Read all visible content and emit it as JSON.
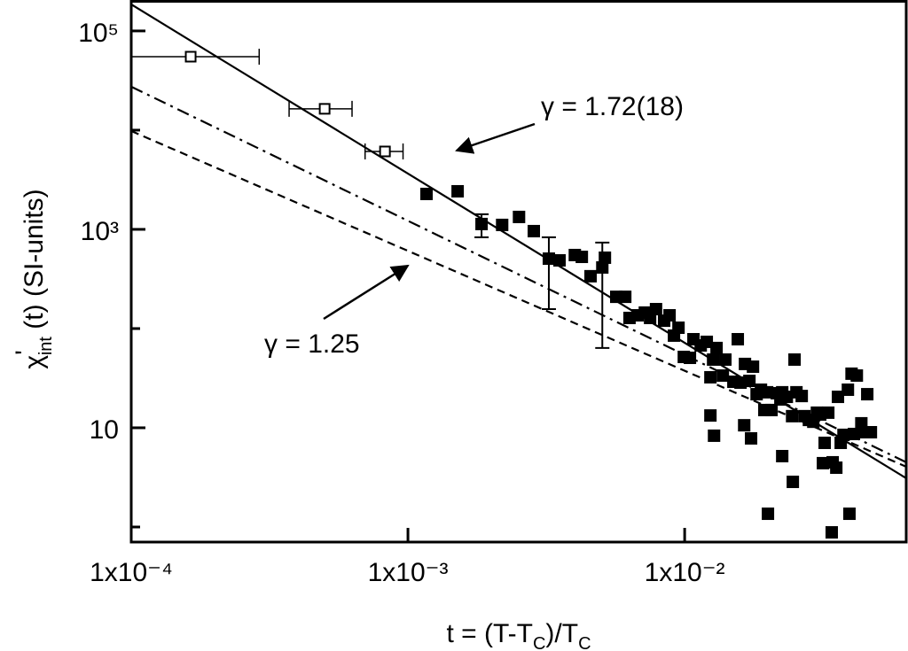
{
  "chart_data": {
    "type": "scatter",
    "log_x": true,
    "log_y": true,
    "x_label": [
      "t = (T-T",
      "C",
      ")/T",
      "C"
    ],
    "y_label": [
      "χ",
      "'",
      "int",
      " (t) (SI-units)"
    ],
    "xlim": [
      0.0001,
      0.0632
    ],
    "ylim": [
      0.705,
      205000
    ],
    "xticks": [
      {
        "value": 0.0001,
        "label": "1x10⁻⁴"
      },
      {
        "value": 0.001,
        "label": "1x10⁻³"
      },
      {
        "value": 0.01,
        "label": "1x10⁻²"
      }
    ],
    "yticks": [
      10,
      {
        "value": 1000,
        "label": "10³"
      },
      {
        "value": 100000,
        "label": "10⁵"
      }
    ],
    "yminor": [
      1,
      100,
      10000
    ],
    "open_points": {
      "color": "#000000",
      "x": [
        0.000164,
        0.0005,
        0.000826
      ],
      "values": [
        55000,
        16400,
        6100
      ],
      "x_low": [
        0.0001,
        0.000372,
        0.0007
      ],
      "x_high": [
        0.00029,
        0.000628,
        0.00096
      ]
    },
    "filled_points": {
      "color": "#000000",
      "x": [
        0.001167,
        0.001512,
        0.001845,
        0.00219,
        0.00252,
        0.00285,
        0.00323,
        0.00353,
        0.00401,
        0.00425,
        0.00457,
        0.00504,
        0.00515,
        0.00566,
        0.0061,
        0.00632,
        0.00676,
        0.00718,
        0.0075,
        0.00788,
        0.00843,
        0.00882,
        0.00915,
        0.0095,
        0.00993,
        0.01045,
        0.01076,
        0.01143,
        0.01202,
        0.01239,
        0.01267,
        0.01304,
        0.01374,
        0.01403,
        0.015,
        0.01556,
        0.01592,
        0.01652,
        0.01714,
        0.01766,
        0.0182,
        0.01887,
        0.01941,
        0.01986,
        0.0206,
        0.02153,
        0.02218,
        0.02252,
        0.0234,
        0.02445,
        0.02495,
        0.02535,
        0.02649,
        0.0271,
        0.02812,
        0.02917,
        0.03006,
        0.0309,
        0.0316,
        0.03206,
        0.03304,
        0.03427,
        0.03532,
        0.03581,
        0.03664,
        0.0375,
        0.0389,
        0.0401,
        0.0409,
        0.0419,
        0.0435,
        0.0448,
        0.0457,
        0.0471,
        0.01239,
        0.01277,
        0.01641,
        0.01738,
        0.02,
        0.02252,
        0.0246,
        0.034,
        0.0394
      ],
      "values": [
        2275,
        2420,
        1132,
        1109,
        1334,
        960,
        507,
        487,
        551,
        528,
        337,
        413,
        518,
        209,
        209,
        128,
        136,
        145,
        128,
        157,
        120,
        136,
        84.9,
        102,
        51.8,
        50.7,
        78.1,
        67.6,
        73.5,
        32.3,
        48.7,
        63.7,
        33.6,
        48.7,
        29.1,
        78.1,
        28.5,
        44.0,
        29.7,
        41.3,
        21.8,
        24.2,
        15.1,
        22.8,
        15.1,
        22.3,
        19.3,
        22.8,
        20.5,
        13.1,
        48.7,
        22.8,
        20.9,
        13.1,
        12.0,
        11.5,
        14.2,
        13.6,
        4.4,
        7.05,
        14.2,
        4.49,
        3.96,
        20.5,
        7.05,
        8.49,
        24.2,
        35.1,
        8.66,
        33.6,
        11.1,
        9.02,
        21.8,
        9.02,
        13.3,
        8.32,
        10.6,
        7.82,
        1.36,
        5.18,
        2.85,
        0.883,
        1.36
      ]
    },
    "error_bars": {
      "x": [
        0.001845,
        0.00323,
        0.00504
      ],
      "low": [
        832,
        157,
        63.7
      ],
      "high": [
        1419,
        832,
        735
      ]
    },
    "fit_lines": [
      {
        "dash": "solid",
        "x": [
          0.0001,
          0.0632
        ],
        "values": [
          185000,
          3.1
        ]
      },
      {
        "dash": "dashdot",
        "x": [
          0.0001,
          0.0632
        ],
        "values": [
          27400,
          4.49
        ]
      },
      {
        "dash": "dashed",
        "x": [
          0.0001,
          0.0632
        ],
        "values": [
          9800,
          4.05
        ]
      }
    ],
    "annotations": [
      "γ = 1.72(18)",
      "γ = 1.25"
    ]
  }
}
